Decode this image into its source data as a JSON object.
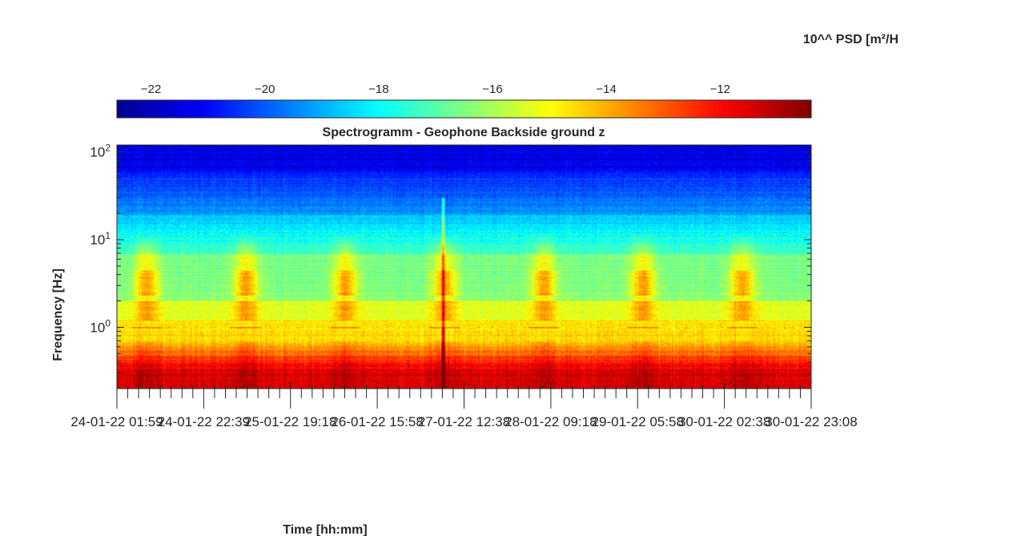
{
  "chart_data": {
    "type": "heatmap",
    "title": "Spectrogramm - Geophone Backside ground z",
    "xlabel": "Time [hh:mm]",
    "ylabel": "Frequency [Hz]",
    "y_scale": "log",
    "ylim": [
      0.2,
      120
    ],
    "y_ticks": [
      {
        "base": "10",
        "exp": "-1",
        "value": 0.1,
        "visible": false
      },
      {
        "base": "10",
        "exp": "0",
        "value": 1
      },
      {
        "base": "10",
        "exp": "1",
        "value": 10
      },
      {
        "base": "10",
        "exp": "2",
        "value": 100
      }
    ],
    "x_tick_labels": [
      "24-01-22 01:59",
      "24-01-22 22:39",
      "25-01-22 19:18",
      "26-01-22 15:58",
      "27-01-22 12:38",
      "28-01-22 09:18",
      "29-01-22 05:58",
      "30-01-22 02:38",
      "30-01-22 23:08"
    ],
    "colorbar": {
      "label": "10^^ PSD [m²/H",
      "colormap": "jet",
      "range": [
        -22.6,
        -10.4
      ],
      "ticks": [
        -22,
        -20,
        -18,
        -16,
        -14,
        -12
      ]
    },
    "bands": [
      {
        "freq_range": [
          30,
          120
        ],
        "log_psd": -21.5
      },
      {
        "freq_range": [
          10,
          30
        ],
        "log_psd": -19
      },
      {
        "freq_range": [
          2,
          10
        ],
        "log_psd": -17
      },
      {
        "freq_range": [
          1,
          2
        ],
        "log_psd": -16
      },
      {
        "freq_range": [
          0.5,
          1
        ],
        "log_psd": -14
      },
      {
        "freq_range": [
          0.2,
          0.5
        ],
        "log_psd": -12
      }
    ],
    "diurnal_bursts": {
      "freq_range": [
        2,
        5
      ],
      "log_psd": -15,
      "centers": [
        "24-01-22 12:00",
        "25-01-22 12:00",
        "26-01-22 12:00",
        "27-01-22 12:00",
        "28-01-22 12:00",
        "29-01-22 12:00",
        "30-01-22 12:00"
      ]
    },
    "tone_line": {
      "freq": 1.0,
      "log_psd": -14
    },
    "transient": {
      "time": "27-01-22 05:30",
      "log_psd": -11
    }
  }
}
